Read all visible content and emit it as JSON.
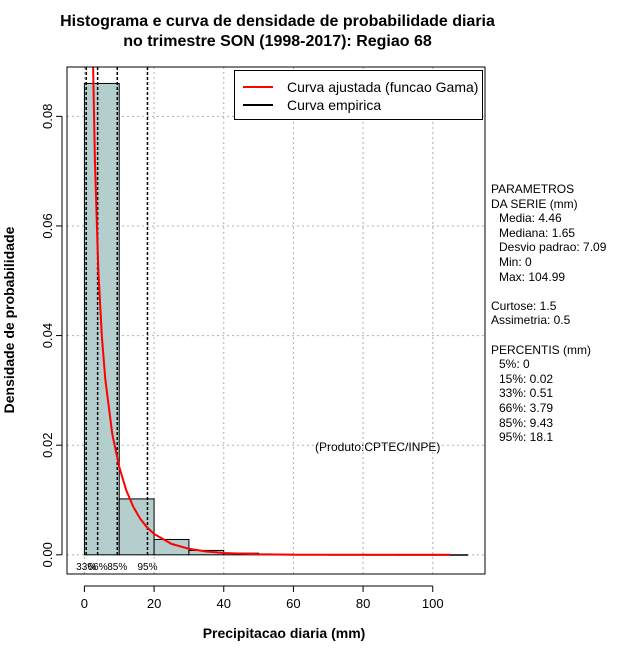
{
  "chart_data": {
    "type": "histogram",
    "title_line1": "Histograma e curva de densidade de probabilidade diaria",
    "title_line2": "no trimestre SON (1998-2017): Regiao 68",
    "xlabel": "Precipitacao diaria (mm)",
    "ylabel": "Densidade de probabilidade",
    "xlim": [
      -5,
      115
    ],
    "ylim": [
      -0.0035,
      0.089
    ],
    "xticks": [
      0,
      20,
      40,
      60,
      80,
      100
    ],
    "yticks": [
      0.0,
      0.02,
      0.04,
      0.06,
      0.08
    ],
    "ytick_labels": [
      "0.00",
      "0.02",
      "0.04",
      "0.06",
      "0.08"
    ],
    "grid": true,
    "bins": [
      {
        "start": 0,
        "end": 10,
        "density": 0.086
      },
      {
        "start": 10,
        "end": 20,
        "density": 0.0102
      },
      {
        "start": 20,
        "end": 30,
        "density": 0.0028
      },
      {
        "start": 30,
        "end": 40,
        "density": 0.0008
      },
      {
        "start": 40,
        "end": 50,
        "density": 0.0003
      },
      {
        "start": 50,
        "end": 60,
        "density": 0.0001
      },
      {
        "start": 60,
        "end": 70,
        "density": 5e-05
      },
      {
        "start": 70,
        "end": 80,
        "density": 3e-05
      },
      {
        "start": 80,
        "end": 90,
        "density": 2e-05
      },
      {
        "start": 90,
        "end": 100,
        "density": 1e-05
      },
      {
        "start": 100,
        "end": 110,
        "density": 1e-05
      }
    ],
    "fitted_curve": {
      "name": "Curva ajustada (funcao Gama)",
      "color": "#ff0000",
      "x_range": [
        2.5,
        105
      ],
      "points": [
        [
          2.5,
          0.089
        ],
        [
          3,
          0.072
        ],
        [
          4,
          0.052
        ],
        [
          5,
          0.04
        ],
        [
          6,
          0.032
        ],
        [
          8,
          0.022
        ],
        [
          10,
          0.016
        ],
        [
          12,
          0.0118
        ],
        [
          14,
          0.0088
        ],
        [
          16,
          0.0066
        ],
        [
          18,
          0.005
        ],
        [
          20,
          0.0038
        ],
        [
          25,
          0.002
        ],
        [
          30,
          0.0011
        ],
        [
          35,
          0.0006
        ],
        [
          40,
          0.00033
        ],
        [
          50,
          0.0001
        ],
        [
          60,
          3e-05
        ],
        [
          80,
          1e-05
        ],
        [
          105,
          0.0
        ]
      ]
    },
    "empirical_curve": {
      "name": "Curva empirica",
      "color": "#000000"
    },
    "percentile_lines": [
      {
        "label": "33%",
        "value": 0.51
      },
      {
        "label": "66%",
        "value": 3.79
      },
      {
        "label": "85%",
        "value": 9.43
      },
      {
        "label": "95%",
        "value": 18.1
      }
    ],
    "percentile_label_text": [
      "33%",
      "66%",
      "85%",
      "95%"
    ],
    "legend_position": "top-right"
  },
  "bar_color": "#b4cdcd",
  "legend": {
    "fitted": "Curva ajustada (funcao Gama)",
    "empirical": "Curva empirica"
  },
  "stats": {
    "header1": "PARAMETROS",
    "header2": "DA SERIE (mm)",
    "media": "Media: 4.46",
    "mediana": "Mediana: 1.65",
    "desvio": "Desvio padrao: 7.09",
    "min": "Min: 0",
    "max": "Max: 104.99",
    "curtose": "Curtose: 1.5",
    "assimetria": "Assimetria: 0.5",
    "percentis_header": "PERCENTIS (mm)",
    "p5": "5%: 0",
    "p15": "15%: 0.02",
    "p33": "33%: 0.51",
    "p66": "66%: 3.79",
    "p85": "85%: 9.43",
    "p95": "95%: 18.1"
  },
  "credit": "(Produto:CPTEC/INPE)"
}
